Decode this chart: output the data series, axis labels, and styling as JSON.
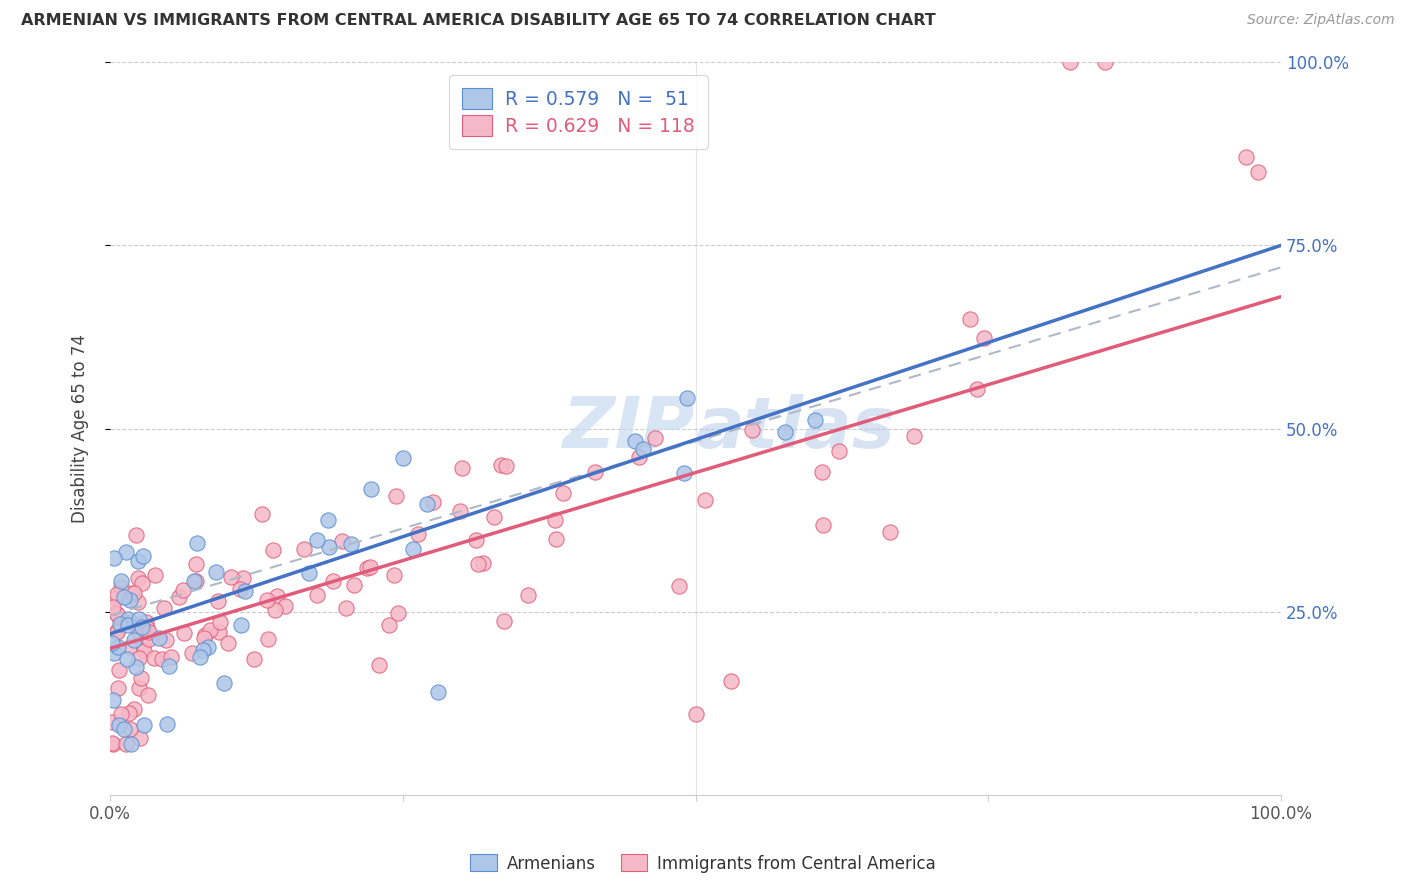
{
  "title": "ARMENIAN VS IMMIGRANTS FROM CENTRAL AMERICA DISABILITY AGE 65 TO 74 CORRELATION CHART",
  "source": "Source: ZipAtlas.com",
  "ylabel": "Disability Age 65 to 74",
  "xlim": [
    0,
    1.0
  ],
  "ylim": [
    0,
    1.0
  ],
  "armenian_fill_color": "#aec6e8",
  "armenian_edge_color": "#5b8fcf",
  "immigrant_fill_color": "#f5b8c8",
  "immigrant_edge_color": "#e0607a",
  "armenian_line_color": "#4472c4",
  "immigrant_line_color": "#e05c7a",
  "dashed_line_color": "#b0b8c8",
  "R_armenian": "0.579",
  "N_armenian": "51",
  "R_immigrant": "0.629",
  "N_immigrant": "118",
  "watermark_color": "#c8daf0",
  "right_tick_color": "#4472c4",
  "grid_color": "#cccccc"
}
